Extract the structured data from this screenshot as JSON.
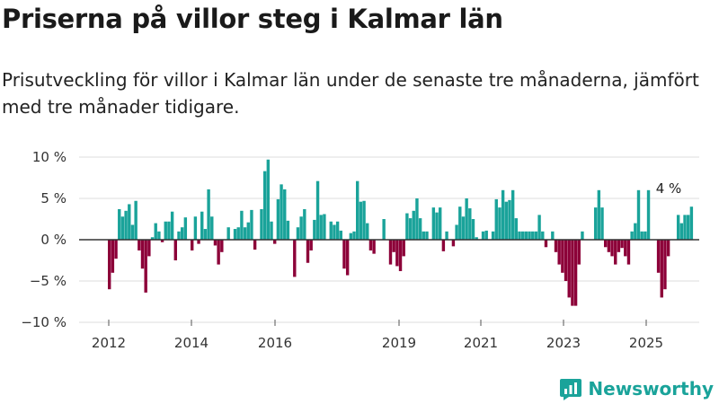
{
  "title": "Priserna på villor steg i Kalmar län",
  "subtitle": "Prisutveckling för villor i Kalmar län under de senaste tre månaderna, jämfört med tre månader tidigare.",
  "brand": "Newsworthy",
  "colors": {
    "positive": "#1aa39a",
    "negative": "#8c0038",
    "grid": "#dddddd",
    "zero_line": "#333333"
  },
  "chart_data": {
    "type": "bar",
    "x_tick_labels": [
      "2012",
      "2014",
      "2016",
      "2019",
      "2021",
      "2023",
      "2025"
    ],
    "y_ticks": [
      10,
      5,
      0,
      -5,
      -10
    ],
    "y_tick_labels": [
      "10 %",
      "5 %",
      "0 %",
      "−5 %",
      "−10 %"
    ],
    "ylim": [
      -10,
      10
    ],
    "annotation": "4 %",
    "values": [
      -6,
      -4,
      -2.3,
      3.7,
      2.8,
      3.5,
      4.3,
      1.8,
      4.7,
      -1.3,
      -3.5,
      -6.4,
      -2,
      0.3,
      2,
      1,
      -0.3,
      2.2,
      2.2,
      3.4,
      -2.5,
      1,
      1.5,
      2.7,
      0,
      -1.3,
      2.8,
      -0.5,
      3.4,
      1.3,
      6.1,
      2.8,
      -0.7,
      -3,
      -1.5,
      0,
      1.5,
      0,
      1.3,
      1.5,
      3.5,
      1.5,
      2.1,
      3.6,
      -1.2,
      0,
      3.7,
      8.3,
      9.7,
      2.2,
      -0.5,
      4.9,
      6.7,
      6.1,
      2.3,
      0,
      -4.5,
      1.5,
      2.8,
      3.7,
      -2.8,
      -1.3,
      2.4,
      7.1,
      3,
      3.1,
      0,
      2.2,
      1.8,
      2.2,
      1.1,
      -3.5,
      -4.3,
      0.8,
      1,
      7.1,
      4.6,
      4.7,
      2,
      -1.3,
      -1.7,
      0,
      0,
      2.5,
      0,
      -3,
      -1.5,
      -3.2,
      -3.8,
      -2,
      3.2,
      2.6,
      3.5,
      5,
      2.6,
      1,
      1,
      0,
      3.9,
      3.3,
      3.9,
      -1.4,
      1,
      0,
      -0.8,
      1.8,
      4,
      2.8,
      5,
      3.8,
      2.5,
      0.3,
      0,
      1,
      1.1,
      0,
      1,
      4.9,
      3.9,
      6,
      4.6,
      4.8,
      6,
      2.6,
      1,
      1,
      1,
      1,
      1,
      1,
      3,
      1,
      -0.9,
      0,
      1,
      -1.5,
      -3,
      -4,
      -5,
      -7,
      -8,
      -8,
      -3,
      1,
      0,
      0,
      0,
      3.9,
      6,
      3.9,
      -0.9,
      -1.5,
      -2,
      -3,
      -1.5,
      -1,
      -2,
      -3,
      1,
      2,
      6,
      1,
      1,
      6,
      0,
      0,
      -4,
      -7,
      -6,
      -2,
      0,
      0,
      3,
      2,
      3,
      3,
      4
    ]
  }
}
